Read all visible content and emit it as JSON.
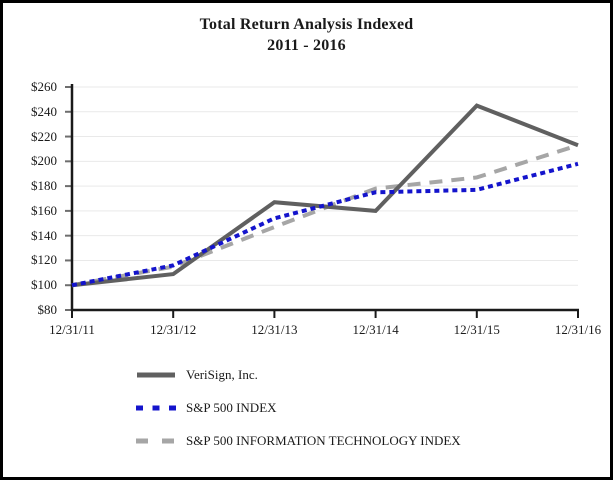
{
  "title": {
    "line1": "Total Return Analysis Indexed",
    "line2": "2011 - 2016"
  },
  "chart_data": {
    "type": "line",
    "title": "Total Return Analysis Indexed 2011 - 2016",
    "x_labels": [
      "12/31/11",
      "12/31/12",
      "12/31/13",
      "12/31/14",
      "12/31/15",
      "12/31/16"
    ],
    "y_tick_labels": [
      "$260",
      "$240",
      "$220",
      "$200",
      "$180",
      "$160",
      "$140",
      "$120",
      "$100",
      "$80"
    ],
    "ylim": [
      80,
      260
    ],
    "y_step": 20,
    "grid": "horizontal-light",
    "legend_position": "bottom-left",
    "axis_color": "#1a1a1a",
    "gridline_color": "#e9e9e9",
    "tick_color": "#6e6e6e",
    "series": [
      {
        "name": "VeriSign, Inc.",
        "values": [
          100,
          109,
          167,
          160,
          245,
          213
        ],
        "color": "#606060",
        "style": "solid",
        "width": 4,
        "dash": "",
        "legend_dash": ""
      },
      {
        "name": "S&P 500 INDEX",
        "values": [
          100,
          116,
          154,
          175,
          177,
          198
        ],
        "color": "#1414cc",
        "style": "dotted",
        "width": 4,
        "dash": "5,4",
        "legend_dash": "7,9.5"
      },
      {
        "name": "S&P 500 INFORMATION TECHNOLOGY INDEX",
        "values": [
          100,
          115,
          147,
          178,
          187,
          213
        ],
        "color": "#a6a6a6",
        "style": "dashed",
        "width": 4,
        "dash": "13,9",
        "legend_dash": "12,14"
      }
    ],
    "z_order": [
      2,
      0,
      1
    ]
  }
}
